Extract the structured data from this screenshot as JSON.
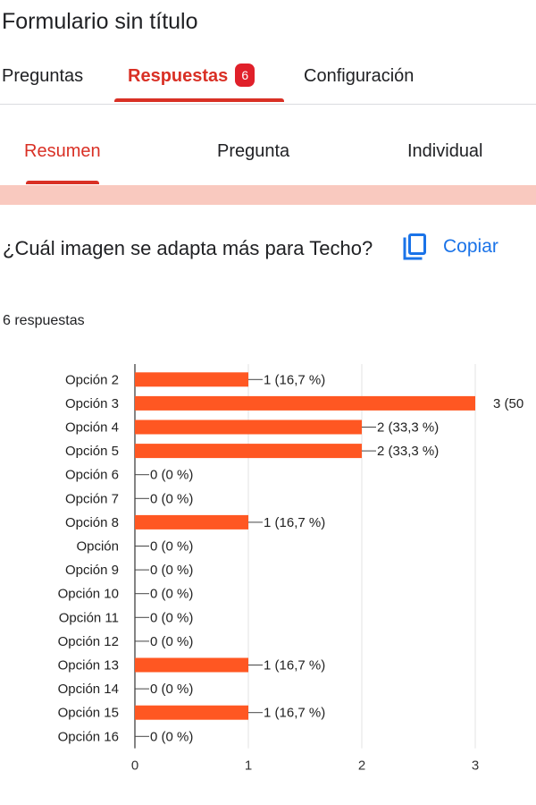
{
  "form": {
    "title": "Formulario sin título"
  },
  "tabs": [
    {
      "label": "Preguntas",
      "active": false
    },
    {
      "label": "Respuestas",
      "active": true,
      "badge": "6"
    },
    {
      "label": "Configuración",
      "active": false
    }
  ],
  "subtabs": [
    {
      "label": "Resumen",
      "active": true
    },
    {
      "label": "Pregunta",
      "active": false
    },
    {
      "label": "Individual",
      "active": false
    }
  ],
  "question": {
    "text": "¿Cuál imagen se adapta más para Techo?",
    "copy_label": "Copiar",
    "copy_icon": "copy-icon",
    "response_count": "6 respuestas"
  },
  "colors": {
    "accent": "#d93025",
    "bar": "#ff5722",
    "link": "#1a73e8",
    "band": "#f9c9bf"
  },
  "chart_data": {
    "type": "bar",
    "orientation": "horizontal",
    "categories": [
      "Opción 2",
      "Opción 3",
      "Opción 4",
      "Opción 5",
      "Opción 6",
      "Opción 7",
      "Opción 8",
      "Opción",
      "Opción 9",
      "Opción 10",
      "Opción 11",
      "Opción 12",
      "Opción 13",
      "Opción 14",
      "Opción 15",
      "Opción 16"
    ],
    "values": [
      1,
      3,
      2,
      2,
      0,
      0,
      1,
      0,
      0,
      0,
      0,
      0,
      1,
      0,
      1,
      0
    ],
    "data_labels": [
      "1 (16,7 %)",
      "3 (50",
      "2 (33,3 %)",
      "2 (33,3 %)",
      "0 (0 %)",
      "0 (0 %)",
      "1 (16,7 %)",
      "0 (0 %)",
      "0 (0 %)",
      "0 (0 %)",
      "0 (0 %)",
      "0 (0 %)",
      "1 (16,7 %)",
      "0 (0 %)",
      "1 (16,7 %)",
      "0 (0 %)"
    ],
    "xticks": [
      "0",
      "1",
      "2",
      "3"
    ],
    "xlim": [
      0,
      3
    ],
    "grid": true
  }
}
